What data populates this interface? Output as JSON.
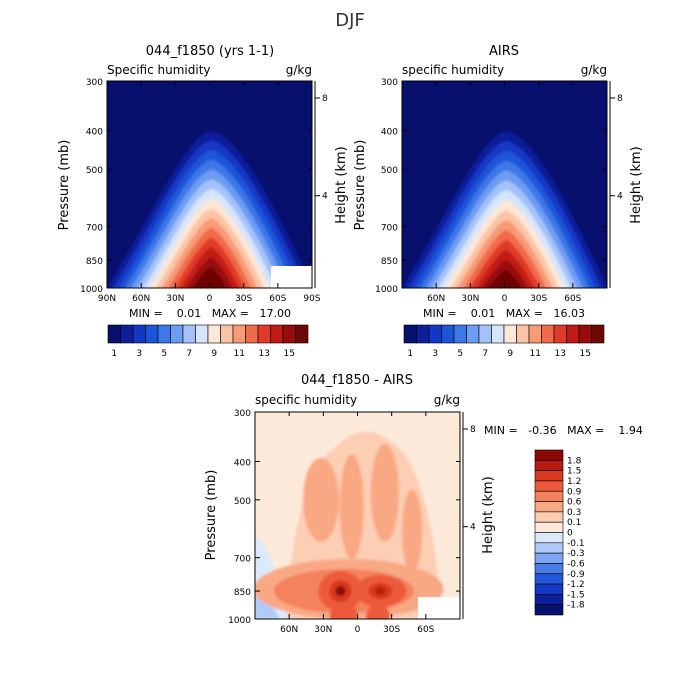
{
  "figure": {
    "title": "DJF"
  },
  "panels": [
    {
      "id": "model",
      "title": "044_f1850 (yrs 1-1)",
      "left_label": "Specific humidity",
      "units": "g/kg",
      "ylabel": "Pressure (mb)",
      "y2label": "Height (km)",
      "stats": "MIN =    0.01   MAX =   17.00"
    },
    {
      "id": "obs",
      "title": "AIRS",
      "left_label": "specific humidity",
      "units": "g/kg",
      "ylabel": "Pressure (mb)",
      "y2label": "Height (km)",
      "stats": "MIN =    0.01   MAX =   16.03"
    },
    {
      "id": "diff",
      "title": "044_f1850 - AIRS",
      "left_label": "specific humidity",
      "units": "g/kg",
      "ylabel": "Pressure (mb)",
      "y2label": "Height (km)",
      "stats": "MIN =   -0.36   MAX =    1.94"
    }
  ],
  "colors": {
    "abs_scale": [
      "#08106e",
      "#0c1f9a",
      "#1237c4",
      "#1d55d9",
      "#3d77e8",
      "#6d9cf3",
      "#a4c2fa",
      "#d6e5fd",
      "#fde7d6",
      "#fcc4a7",
      "#f89a76",
      "#f06b4b",
      "#e03a28",
      "#c21a14",
      "#980c0c",
      "#6e0606"
    ],
    "diff_scale": [
      "#08106e",
      "#0c1f9a",
      "#1537c6",
      "#2458dc",
      "#4b7de9",
      "#7ea5f4",
      "#b0cbfa",
      "#dce9fd",
      "#fde9d9",
      "#fccbb0",
      "#f9a884",
      "#f4825d",
      "#ec5a3b",
      "#d8381e",
      "#b61b10",
      "#8c0808"
    ]
  },
  "chart_data": [
    {
      "type": "heatmap",
      "title": "044_f1850 (yrs 1-1)",
      "subtitle": "Specific humidity",
      "units": "g/kg",
      "xlabel": "",
      "ylabel": "Pressure (mb)",
      "y2label": "Height (km)",
      "x_tick_labels": [
        "90N",
        "60N",
        "30N",
        "0",
        "30S",
        "60S",
        "90S"
      ],
      "x_ticks": [
        90,
        60,
        30,
        0,
        -30,
        -60,
        -90
      ],
      "xlim": [
        90,
        -90
      ],
      "y_tick_labels": [
        "300",
        "400",
        "500",
        "700",
        "850",
        "1000"
      ],
      "y_ticks": [
        300,
        400,
        500,
        700,
        850,
        1000
      ],
      "ylim": [
        300,
        1000
      ],
      "y_scale": "log",
      "y2_tick_labels": [
        "8",
        "4"
      ],
      "contour_levels": [
        1,
        2,
        3,
        4,
        5,
        6,
        7,
        8,
        9,
        10,
        11,
        12,
        13,
        14,
        15
      ],
      "colorbar_labels": [
        "1",
        "3",
        "5",
        "7",
        "9",
        "11",
        "13",
        "15"
      ],
      "peak": {
        "lat": 0,
        "pressure": 1000,
        "value": 17.0
      },
      "missing_region": {
        "lat": [
          -60,
          -90
        ],
        "pressure": [
          915,
          1000
        ]
      },
      "min": 0.01,
      "max": 17.0
    },
    {
      "type": "heatmap",
      "title": "AIRS",
      "subtitle": "specific humidity",
      "units": "g/kg",
      "xlabel": "",
      "ylabel": "Pressure (mb)",
      "y2label": "Height (km)",
      "x_tick_labels": [
        "60N",
        "30N",
        "0",
        "30S",
        "60S"
      ],
      "x_ticks": [
        60,
        30,
        0,
        -30,
        -60
      ],
      "xlim": [
        90,
        -90
      ],
      "y_tick_labels": [
        "300",
        "400",
        "500",
        "700",
        "850",
        "1000"
      ],
      "y_ticks": [
        300,
        400,
        500,
        700,
        850,
        1000
      ],
      "ylim": [
        300,
        1000
      ],
      "y_scale": "log",
      "y2_tick_labels": [
        "8",
        "4"
      ],
      "contour_levels": [
        1,
        2,
        3,
        4,
        5,
        6,
        7,
        8,
        9,
        10,
        11,
        12,
        13,
        14,
        15
      ],
      "colorbar_labels": [
        "1",
        "3",
        "5",
        "7",
        "9",
        "11",
        "13",
        "15"
      ],
      "peak": {
        "lat": 0,
        "pressure": 1000,
        "value": 16.03
      },
      "min": 0.01,
      "max": 16.03
    },
    {
      "type": "heatmap",
      "title": "044_f1850 - AIRS",
      "subtitle": "specific humidity",
      "units": "g/kg",
      "xlabel": "",
      "ylabel": "Pressure (mb)",
      "y2label": "Height (km)",
      "x_tick_labels": [
        "60N",
        "30N",
        "0",
        "30S",
        "60S"
      ],
      "x_ticks": [
        60,
        30,
        0,
        -30,
        -60
      ],
      "xlim": [
        90,
        -90
      ],
      "y_tick_labels": [
        "300",
        "400",
        "500",
        "700",
        "850",
        "1000"
      ],
      "y_ticks": [
        300,
        400,
        500,
        700,
        850,
        1000
      ],
      "ylim": [
        300,
        1000
      ],
      "y_scale": "log",
      "y2_tick_labels": [
        "8",
        "4"
      ],
      "contour_levels": [
        -1.8,
        -1.5,
        -1.2,
        -0.9,
        -0.6,
        -0.3,
        -0.1,
        0,
        0.1,
        0.3,
        0.6,
        0.9,
        1.2,
        1.5,
        1.8
      ],
      "colorbar_labels": [
        "1.8",
        "1.5",
        "1.2",
        "0.9",
        "0.6",
        "0.3",
        "0.1",
        "0",
        "-0.1",
        "-0.3",
        "-0.6",
        "-0.9",
        "-1.2",
        "-1.5",
        "-1.8"
      ],
      "maxima": [
        {
          "lat": 15,
          "pressure": 850,
          "value": 1.94
        },
        {
          "lat": -20,
          "pressure": 850,
          "value": 1.5
        }
      ],
      "min": -0.36,
      "max": 1.94
    }
  ]
}
